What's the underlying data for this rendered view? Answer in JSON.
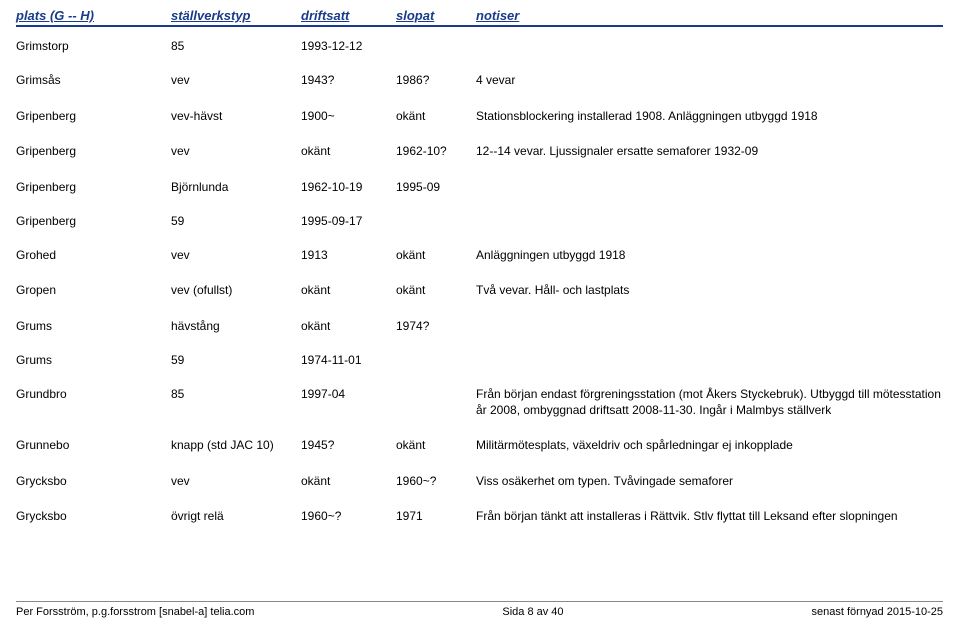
{
  "headers": {
    "plats": "plats (G -- H)",
    "typ": "ställverkstyp",
    "driftsatt": "driftsatt",
    "slopat": "slopat",
    "notiser": "notiser"
  },
  "rows": [
    {
      "plats": "Grimstorp",
      "typ": "85",
      "driftsatt": "1993-12-12",
      "slopat": "",
      "notiser": ""
    },
    {
      "plats": "Grimsås",
      "typ": "vev",
      "driftsatt": "1943?",
      "slopat": "1986?",
      "notiser": "4 vevar"
    },
    {
      "plats": "Gripenberg",
      "typ": "vev-hävst",
      "driftsatt": "1900~",
      "slopat": "okänt",
      "notiser": "Stationsblockering installerad 1908. Anläggningen utbyggd 1918"
    },
    {
      "plats": "Gripenberg",
      "typ": "vev",
      "driftsatt": "okänt",
      "slopat": "1962-10?",
      "notiser": "12--14 vevar. Ljussignaler ersatte semaforer 1932-09"
    },
    {
      "plats": "Gripenberg",
      "typ": "Björnlunda",
      "driftsatt": "1962-10-19",
      "slopat": "1995-09",
      "notiser": ""
    },
    {
      "plats": "Gripenberg",
      "typ": "59",
      "driftsatt": "1995-09-17",
      "slopat": "",
      "notiser": ""
    },
    {
      "plats": "Grohed",
      "typ": "vev",
      "driftsatt": "1913",
      "slopat": "okänt",
      "notiser": "Anläggningen utbyggd 1918"
    },
    {
      "plats": "Gropen",
      "typ": "vev (ofullst)",
      "driftsatt": "okänt",
      "slopat": "okänt",
      "notiser": "Två vevar. Håll- och lastplats"
    },
    {
      "plats": "Grums",
      "typ": "hävstång",
      "driftsatt": "okänt",
      "slopat": "1974?",
      "notiser": ""
    },
    {
      "plats": "Grums",
      "typ": "59",
      "driftsatt": "1974-11-01",
      "slopat": "",
      "notiser": ""
    },
    {
      "plats": "Grundbro",
      "typ": "85",
      "driftsatt": "1997-04",
      "slopat": "",
      "notiser": "Från början endast förgreningsstation (mot Åkers Styckebruk). Utbyggd till mötesstation år 2008, ombyggnad driftsatt 2008-11-30. Ingår i Malmbys ställverk"
    },
    {
      "plats": "Grunnebo",
      "typ": "knapp (std JAC 10)",
      "driftsatt": "1945?",
      "slopat": "okänt",
      "notiser": "Militärmötesplats, växeldriv och spårledningar ej inkopplade"
    },
    {
      "plats": "Grycksbo",
      "typ": "vev",
      "driftsatt": "okänt",
      "slopat": "1960~?",
      "notiser": "Viss osäkerhet om typen. Tvåvingade semaforer"
    },
    {
      "plats": "Grycksbo",
      "typ": "övrigt relä",
      "driftsatt": "1960~?",
      "slopat": "1971",
      "notiser": " Från början tänkt att installeras i Rättvik. Stlv flyttat till Leksand efter slopningen"
    }
  ],
  "footer": {
    "left": "Per Forsström, p.g.forsstrom [snabel-a] telia.com",
    "center": "Sida 8 av 40",
    "right": "senast förnyad 2015-10-25"
  }
}
